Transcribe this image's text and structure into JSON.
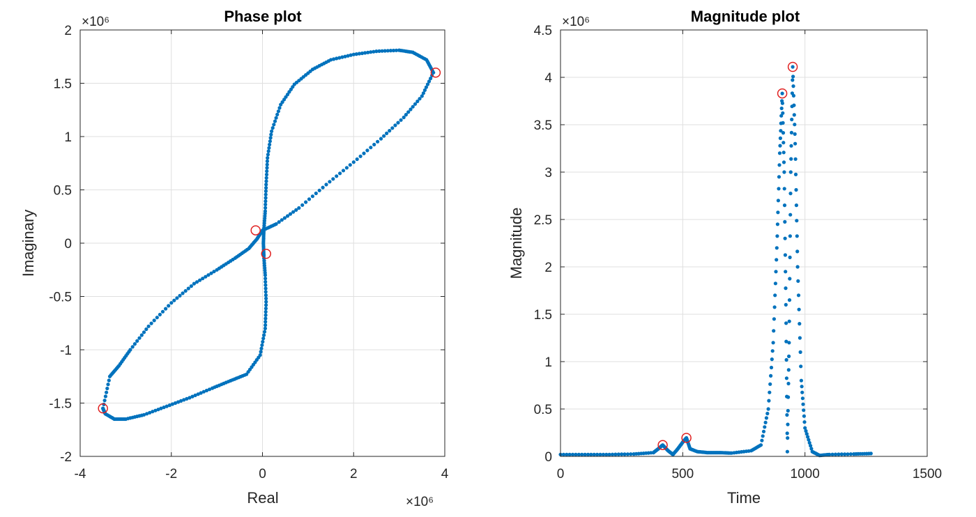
{
  "colors": {
    "series": "#0072BD",
    "highlight": "#E02020",
    "axis": "#262626",
    "grid": "#dfdfdf"
  },
  "chart_data": [
    {
      "type": "scatter",
      "title": "Phase plot",
      "xlabel": "Real",
      "ylabel": "Imaginary",
      "x_exponent": "×10⁶",
      "y_exponent": "×10⁶",
      "xlim": [
        -4000000,
        4000000
      ],
      "ylim": [
        -2000000,
        2000000
      ],
      "xticks": [
        -4000000,
        -2000000,
        0,
        2000000,
        4000000
      ],
      "xtick_labels": [
        "-4",
        "-2",
        "0",
        "2",
        "4"
      ],
      "yticks": [
        -2000000,
        -1500000,
        -1000000,
        -500000,
        0,
        500000,
        1000000,
        1500000,
        2000000
      ],
      "ytick_labels": [
        "-2",
        "-1.5",
        "-1",
        "-0.5",
        "0",
        "0.5",
        "1",
        "1.5",
        "2"
      ],
      "grid": true,
      "series": [
        {
          "marker": "dot",
          "points": [
            [
              -3500000,
              -1550000
            ],
            [
              -3350000,
              -1250000
            ],
            [
              -3150000,
              -1150000
            ],
            [
              -2900000,
              -1000000
            ],
            [
              -2500000,
              -780000
            ],
            [
              -2000000,
              -560000
            ],
            [
              -1500000,
              -380000
            ],
            [
              -1000000,
              -250000
            ],
            [
              -600000,
              -140000
            ],
            [
              -300000,
              -50000
            ],
            [
              -120000,
              40000
            ],
            [
              0,
              120000
            ],
            [
              300000,
              180000
            ],
            [
              800000,
              330000
            ],
            [
              1400000,
              550000
            ],
            [
              2000000,
              760000
            ],
            [
              2600000,
              980000
            ],
            [
              3100000,
              1180000
            ],
            [
              3500000,
              1380000
            ],
            [
              3750000,
              1600000
            ],
            [
              3600000,
              1720000
            ],
            [
              3300000,
              1790000
            ],
            [
              3000000,
              1810000
            ],
            [
              2500000,
              1800000
            ],
            [
              2000000,
              1770000
            ],
            [
              1500000,
              1720000
            ],
            [
              1100000,
              1630000
            ],
            [
              700000,
              1490000
            ],
            [
              400000,
              1300000
            ],
            [
              200000,
              1050000
            ],
            [
              110000,
              800000
            ],
            [
              80000,
              550000
            ],
            [
              60000,
              300000
            ],
            [
              30000,
              120000
            ],
            [
              20000,
              0
            ],
            [
              30000,
              -120000
            ],
            [
              60000,
              -300000
            ],
            [
              80000,
              -550000
            ],
            [
              60000,
              -800000
            ],
            [
              -50000,
              -1050000
            ],
            [
              -350000,
              -1230000
            ],
            [
              -700000,
              -1290000
            ],
            [
              -1100000,
              -1360000
            ],
            [
              -1600000,
              -1450000
            ],
            [
              -2100000,
              -1530000
            ],
            [
              -2600000,
              -1610000
            ],
            [
              -3000000,
              -1650000
            ],
            [
              -3250000,
              -1650000
            ],
            [
              -3450000,
              -1600000
            ],
            [
              -3500000,
              -1550000
            ]
          ]
        }
      ],
      "highlights": [
        [
          -3500000,
          -1550000
        ],
        [
          3800000,
          1600000
        ],
        [
          -150000,
          120000
        ],
        [
          80000,
          -100000
        ]
      ]
    },
    {
      "type": "scatter",
      "title": "Magnitude plot",
      "xlabel": "Time",
      "ylabel": "Magnitude",
      "y_exponent": "×10⁶",
      "xlim": [
        0,
        1500
      ],
      "ylim": [
        0,
        4500000
      ],
      "xticks": [
        0,
        500,
        1000,
        1500
      ],
      "xtick_labels": [
        "0",
        "500",
        "1000",
        "1500"
      ],
      "yticks": [
        0,
        500000,
        1000000,
        1500000,
        2000000,
        2500000,
        3000000,
        3500000,
        4000000,
        4500000
      ],
      "ytick_labels": [
        "0",
        "0.5",
        "1",
        "1.5",
        "2",
        "2.5",
        "3",
        "3.5",
        "4",
        "4.5"
      ],
      "grid": true,
      "series": [
        {
          "marker": "dot",
          "points": [
            [
              0,
              20000
            ],
            [
              100,
              20000
            ],
            [
              200,
              20000
            ],
            [
              300,
              25000
            ],
            [
              380,
              40000
            ],
            [
              400,
              80000
            ],
            [
              418,
              120000
            ],
            [
              440,
              60000
            ],
            [
              460,
              20000
            ],
            [
              480,
              80000
            ],
            [
              500,
              150000
            ],
            [
              515,
              195000
            ],
            [
              530,
              80000
            ],
            [
              560,
              50000
            ],
            [
              600,
              40000
            ],
            [
              650,
              40000
            ],
            [
              700,
              35000
            ],
            [
              780,
              60000
            ],
            [
              820,
              120000
            ],
            [
              850,
              500000
            ],
            [
              870,
              1200000
            ],
            [
              885,
              2200000
            ],
            [
              897,
              3200000
            ],
            [
              907,
              3830000
            ],
            [
              915,
              3000000
            ],
            [
              922,
              1600000
            ],
            [
              928,
              50000
            ],
            [
              935,
              1200000
            ],
            [
              942,
              3000000
            ],
            [
              950,
              4110000
            ],
            [
              960,
              3300000
            ],
            [
              970,
              2000000
            ],
            [
              985,
              800000
            ],
            [
              1000,
              300000
            ],
            [
              1030,
              50000
            ],
            [
              1060,
              10000
            ],
            [
              1100,
              20000
            ],
            [
              1200,
              25000
            ],
            [
              1270,
              30000
            ]
          ]
        }
      ],
      "highlights": [
        [
          418,
          120000
        ],
        [
          515,
          195000
        ],
        [
          907,
          3830000
        ],
        [
          950,
          4110000
        ]
      ]
    }
  ]
}
